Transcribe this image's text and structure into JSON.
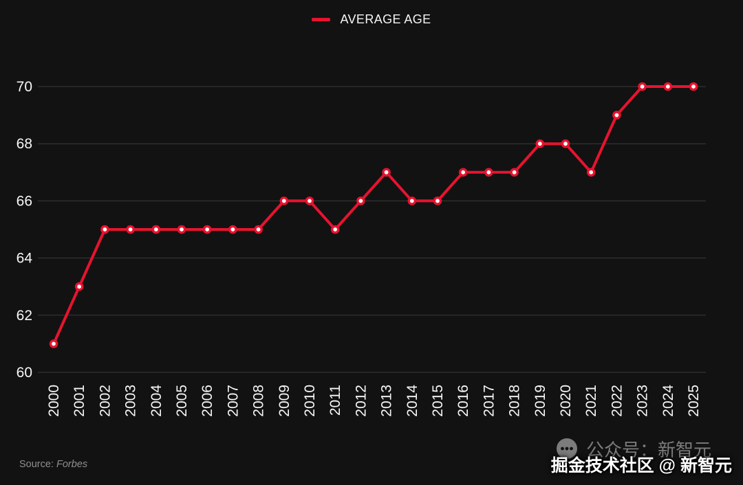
{
  "legend": {
    "label": "AVERAGE AGE"
  },
  "colors": {
    "background": "#121212",
    "line": "#e8132f",
    "marker_fill": "#ffffff",
    "grid": "#3b3b3b",
    "tick_text": "#f7f7f7",
    "source_text": "#8f8f8f",
    "watermark_gray": "#7c7c7c",
    "overlay_text": "#ffffff"
  },
  "chart_data": {
    "type": "line",
    "title": "",
    "legend_entries": [
      {
        "label": "AVERAGE AGE",
        "color": "#e8132f"
      }
    ],
    "legend_position": "top-center",
    "grid": true,
    "marker": "circle-open",
    "x": [
      2000,
      2001,
      2002,
      2003,
      2004,
      2005,
      2006,
      2007,
      2008,
      2009,
      2010,
      2011,
      2012,
      2013,
      2014,
      2015,
      2016,
      2017,
      2018,
      2019,
      2020,
      2021,
      2022,
      2023,
      2024,
      2025
    ],
    "series": [
      {
        "name": "AVERAGE AGE",
        "values": [
          61,
          63,
          65,
          65,
          65,
          65,
          65,
          65,
          65,
          66,
          66,
          65,
          66,
          67,
          66,
          66,
          67,
          67,
          67,
          68,
          68,
          67,
          69,
          70,
          70,
          70
        ]
      }
    ],
    "xlabel": "",
    "ylabel": "",
    "ylim": [
      60,
      70
    ],
    "yticks": [
      60,
      62,
      64,
      66,
      68,
      70
    ]
  },
  "footer": {
    "source_label": "Source:",
    "source_name": "Forbes"
  },
  "watermark": {
    "icon": "wechat-icon",
    "gray_text": "公众号：新智元",
    "overlay_text": "掘金技术社区 @ 新智元"
  }
}
